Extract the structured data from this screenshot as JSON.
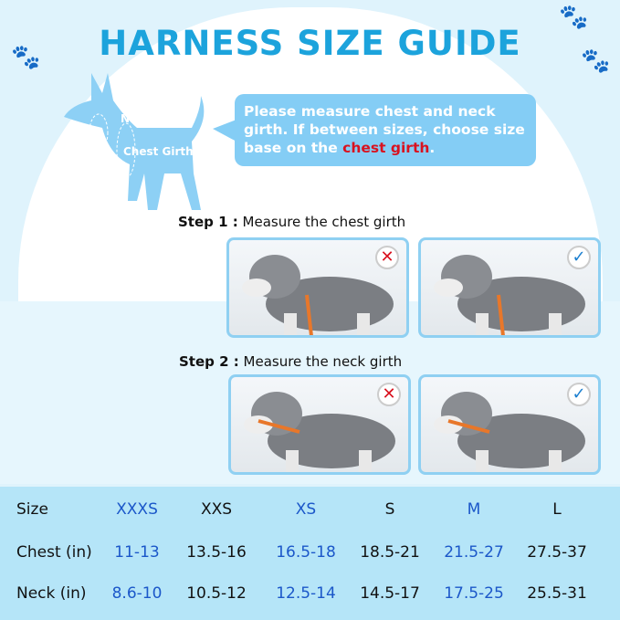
{
  "title": "HARNESS SIZE GUIDE",
  "diagram": {
    "neck_label": "Neck Girth",
    "chest_label": "Chest Girth"
  },
  "note": {
    "text_before": "Please measure chest and neck girth. If between sizes, choose size base on the ",
    "highlight": "chest girth",
    "text_after": "."
  },
  "steps": [
    {
      "label": "Step 1 :",
      "text": " Measure the chest girth",
      "photos": [
        {
          "mark": "wrong",
          "icon": "x-icon"
        },
        {
          "mark": "correct",
          "icon": "check-icon"
        }
      ]
    },
    {
      "label": "Step 2 :",
      "text": " Measure the neck girth",
      "photos": [
        {
          "mark": "wrong",
          "icon": "x-icon"
        },
        {
          "mark": "correct",
          "icon": "check-icon"
        }
      ]
    }
  ],
  "size_table": {
    "row_labels": [
      "Size",
      "Chest (in)",
      "Neck (in)"
    ],
    "sizes": [
      "XXXS",
      "XXS",
      "XS",
      "S",
      "M",
      "L"
    ],
    "chest": [
      "11-13",
      "13.5-16",
      "16.5-18",
      "18.5-21",
      "21.5-27",
      "27.5-37"
    ],
    "neck": [
      "8.6-10",
      "10.5-12",
      "12.5-14",
      "14.5-17",
      "17.5-25",
      "25.5-31"
    ]
  },
  "colors": {
    "title": "#1ca3dc",
    "accent_blue": "#1b57c9",
    "highlight_red": "#d9121f",
    "table_bg": "#b5e5f8",
    "silhouette": "#8dd0f5"
  }
}
